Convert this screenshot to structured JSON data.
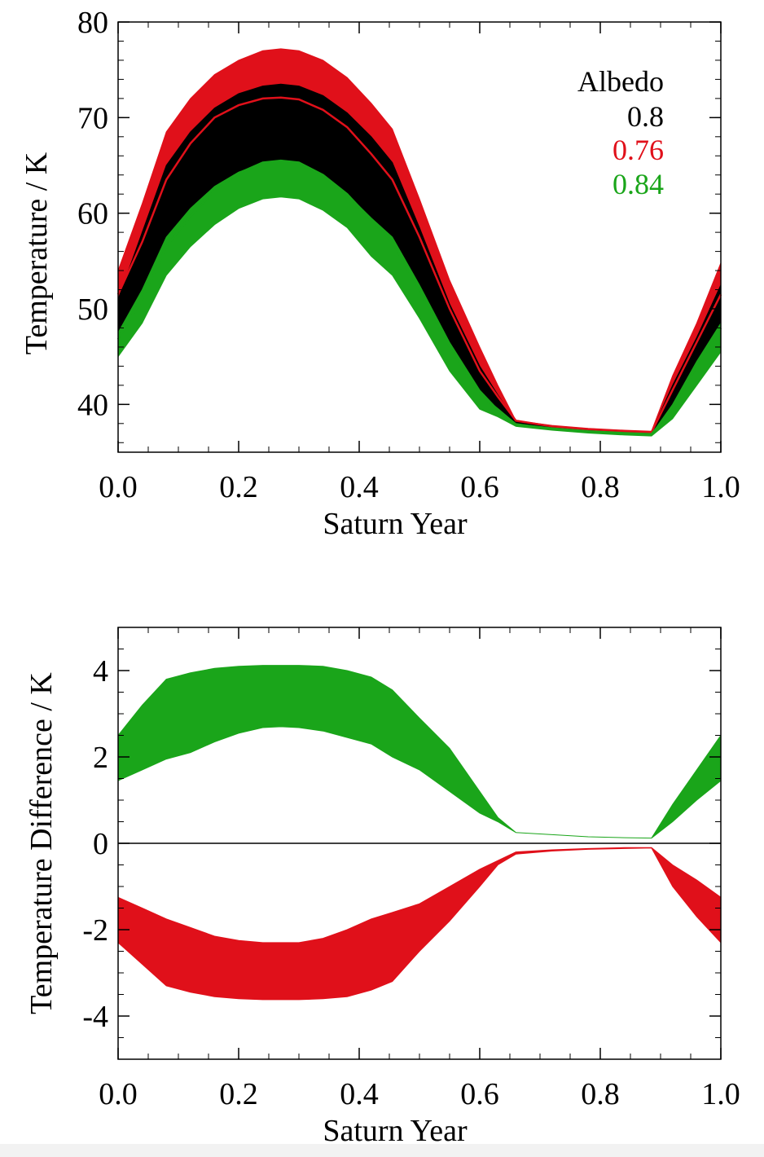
{
  "figure_title": "",
  "chart_data": [
    {
      "type": "area",
      "panel": "top",
      "xlabel": "Saturn Year",
      "ylabel": "Temperature / K",
      "xlim": [
        0.0,
        1.0
      ],
      "ylim": [
        35,
        80
      ],
      "xticks": [
        "0.0",
        "0.2",
        "0.4",
        "0.6",
        "0.8",
        "1.0"
      ],
      "yticks": [
        "40",
        "50",
        "60",
        "70",
        "80"
      ],
      "legend": {
        "title": "Albedo",
        "placement": "top-right",
        "entries": [
          {
            "label": "0.8",
            "color": "#000000"
          },
          {
            "label": "0.76",
            "color": "#e0101a"
          },
          {
            "label": "0.84",
            "color": "#1aa51a"
          }
        ]
      },
      "x": [
        0.0,
        0.04,
        0.08,
        0.12,
        0.16,
        0.2,
        0.24,
        0.27,
        0.3,
        0.34,
        0.38,
        0.42,
        0.455,
        0.5,
        0.55,
        0.6,
        0.63,
        0.66,
        0.72,
        0.78,
        0.84,
        0.885,
        0.92,
        0.96,
        1.0
      ],
      "series": [
        {
          "name": "0.76",
          "color": "#e0101a",
          "upper": [
            54.0,
            61.0,
            68.5,
            72.0,
            74.5,
            76.0,
            77.0,
            77.2,
            77.0,
            76.0,
            74.2,
            71.5,
            68.8,
            61.5,
            53.0,
            46.0,
            42.0,
            38.3,
            37.8,
            37.5,
            37.3,
            37.2,
            43.0,
            48.5,
            54.8
          ],
          "lower": [
            50.0,
            54.5,
            61.0,
            64.5,
            67.5,
            69.0,
            70.0,
            70.2,
            70.0,
            69.0,
            67.5,
            64.5,
            62.5,
            56.0,
            49.5,
            43.5,
            40.5,
            38.0,
            37.6,
            37.3,
            37.1,
            37.0,
            41.0,
            46.0,
            51.0
          ]
        },
        {
          "name": "0.8",
          "color": "#000000",
          "upper": [
            51.0,
            58.0,
            65.0,
            68.5,
            71.0,
            72.5,
            73.3,
            73.5,
            73.3,
            72.3,
            70.5,
            68.0,
            65.3,
            58.5,
            50.5,
            44.0,
            41.0,
            38.2,
            37.7,
            37.4,
            37.2,
            37.1,
            42.0,
            47.0,
            52.5
          ],
          "lower": [
            47.0,
            51.5,
            57.5,
            60.5,
            62.5,
            63.8,
            64.5,
            64.6,
            64.4,
            63.2,
            61.5,
            58.5,
            56.5,
            51.5,
            45.5,
            40.5,
            39.2,
            37.9,
            37.5,
            37.2,
            37.0,
            36.9,
            39.5,
            43.5,
            47.5
          ]
        },
        {
          "name": "0.84",
          "color": "#1aa51a",
          "upper": [
            47.5,
            52.0,
            57.5,
            60.5,
            62.8,
            64.3,
            65.2,
            65.5,
            65.2,
            64.0,
            62.0,
            59.5,
            57.5,
            52.5,
            46.5,
            41.5,
            39.5,
            38.0,
            37.5,
            37.2,
            37.0,
            36.9,
            40.0,
            44.5,
            48.5
          ],
          "lower": [
            45.0,
            48.5,
            53.5,
            56.5,
            58.8,
            60.5,
            61.5,
            61.7,
            61.5,
            60.3,
            58.5,
            55.5,
            53.5,
            49.0,
            43.5,
            39.5,
            38.7,
            37.7,
            37.3,
            37.0,
            36.8,
            36.7,
            38.5,
            42.0,
            45.5
          ]
        }
      ],
      "center_lines": [
        {
          "name": "0.76",
          "color": "#e0101a",
          "values": [
            51.5,
            57.0,
            63.5,
            67.3,
            70.0,
            71.3,
            72.0,
            72.1,
            71.9,
            70.8,
            69.0,
            66.2,
            63.5,
            57.5,
            50.0,
            43.5,
            40.8,
            38.3,
            37.7,
            37.4,
            37.2,
            37.1,
            41.5,
            46.5,
            51.5
          ]
        },
        {
          "name": "0.84",
          "color": "#1aa51a",
          "values": [
            46.8,
            51.0,
            56.5,
            59.7,
            62.3,
            64.2,
            65.3,
            65.5,
            65.3,
            64.0,
            62.0,
            59.3,
            57.0,
            52.0,
            46.0,
            41.0,
            39.5,
            37.9,
            37.5,
            37.2,
            37.0,
            36.9,
            39.5,
            44.0,
            48.0
          ]
        }
      ]
    },
    {
      "type": "area",
      "panel": "bottom",
      "xlabel": "Saturn Year",
      "ylabel": "Temperature Difference / K",
      "xlim": [
        0.0,
        1.0
      ],
      "ylim": [
        -5,
        5
      ],
      "xticks": [
        "0.0",
        "0.2",
        "0.4",
        "0.6",
        "0.8",
        "1.0"
      ],
      "yticks": [
        "-4",
        "-2",
        "0",
        "2",
        "4"
      ],
      "zero_line": true,
      "x": [
        0.0,
        0.04,
        0.08,
        0.12,
        0.16,
        0.2,
        0.24,
        0.27,
        0.3,
        0.34,
        0.38,
        0.42,
        0.455,
        0.5,
        0.55,
        0.6,
        0.63,
        0.66,
        0.72,
        0.78,
        0.84,
        0.885,
        0.92,
        0.96,
        1.0
      ],
      "series": [
        {
          "name": "0.84",
          "color": "#1aa51a",
          "upper": [
            2.5,
            3.2,
            3.8,
            3.95,
            4.05,
            4.1,
            4.12,
            4.12,
            4.12,
            4.1,
            4.0,
            3.85,
            3.55,
            2.9,
            2.2,
            1.2,
            0.6,
            0.25,
            0.2,
            0.15,
            0.13,
            0.12,
            0.9,
            1.7,
            2.5
          ],
          "lower": [
            1.45,
            1.7,
            1.95,
            2.1,
            2.35,
            2.55,
            2.68,
            2.7,
            2.68,
            2.6,
            2.45,
            2.3,
            2.0,
            1.7,
            1.2,
            0.7,
            0.5,
            0.25,
            0.2,
            0.15,
            0.13,
            0.12,
            0.5,
            1.0,
            1.45
          ]
        },
        {
          "name": "0.76",
          "color": "#e0101a",
          "upper": [
            -1.25,
            -1.5,
            -1.75,
            -1.95,
            -2.15,
            -2.25,
            -2.3,
            -2.3,
            -2.3,
            -2.2,
            -2.0,
            -1.75,
            -1.6,
            -1.4,
            -1.0,
            -0.6,
            -0.4,
            -0.2,
            -0.15,
            -0.12,
            -0.1,
            -0.1,
            -0.5,
            -0.85,
            -1.25
          ],
          "lower": [
            -2.3,
            -2.8,
            -3.3,
            -3.45,
            -3.55,
            -3.6,
            -3.62,
            -3.62,
            -3.62,
            -3.6,
            -3.55,
            -3.4,
            -3.2,
            -2.5,
            -1.8,
            -1.0,
            -0.5,
            -0.25,
            -0.18,
            -0.14,
            -0.12,
            -0.11,
            -1.0,
            -1.7,
            -2.3
          ]
        }
      ]
    }
  ]
}
